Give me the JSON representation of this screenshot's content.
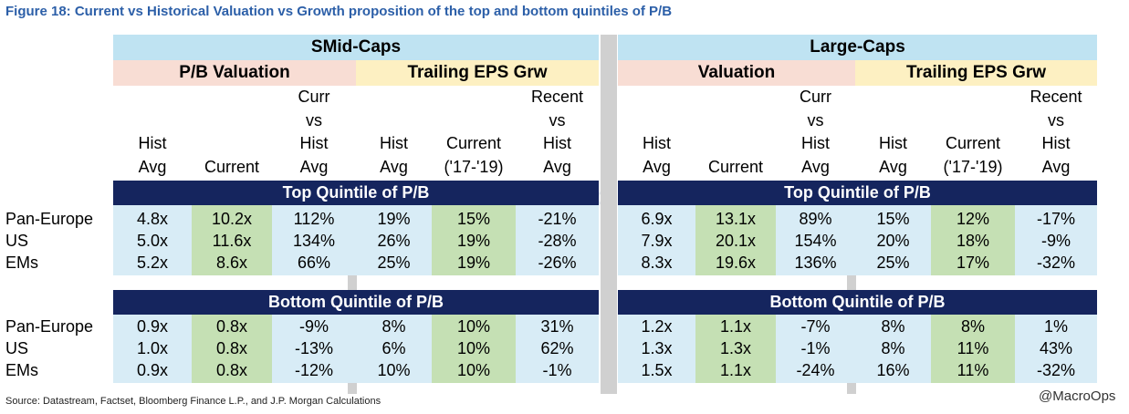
{
  "figure_title": "Figure 18: Current vs Historical Valuation vs Growth proposition of the top and bottom quintiles of P/B",
  "panels": [
    {
      "title": "SMid-Caps",
      "valuation_label": "P/B Valuation",
      "growth_label": "Trailing EPS Grw",
      "columns": [
        [
          "Hist",
          "Avg"
        ],
        [
          "Current"
        ],
        [
          "Curr",
          "vs",
          "Hist",
          "Avg"
        ],
        [
          "Hist",
          "Avg"
        ],
        [
          "Current",
          "('17-'19)"
        ],
        [
          "Recent",
          "vs",
          "Hist",
          "Avg"
        ]
      ]
    },
    {
      "title": "Large-Caps",
      "valuation_label": "Valuation",
      "growth_label": "Trailing EPS Grw",
      "columns": [
        [
          "Hist",
          "Avg"
        ],
        [
          "Current"
        ],
        [
          "Curr",
          "vs",
          "Hist",
          "Avg"
        ],
        [
          "Hist",
          "Avg"
        ],
        [
          "Current",
          "('17-'19)"
        ],
        [
          "Recent",
          "vs",
          "Hist",
          "Avg"
        ]
      ]
    }
  ],
  "sections": [
    {
      "title": "Top Quintile of P/B",
      "rows": [
        {
          "label": "Pan-Europe",
          "smid": [
            "4.8x",
            "10.2x",
            "112%",
            "19%",
            "15%",
            "-21%"
          ],
          "large": [
            "6.9x",
            "13.1x",
            "89%",
            "15%",
            "12%",
            "-17%"
          ]
        },
        {
          "label": "US",
          "smid": [
            "5.0x",
            "11.6x",
            "134%",
            "26%",
            "19%",
            "-28%"
          ],
          "large": [
            "7.9x",
            "20.1x",
            "154%",
            "20%",
            "18%",
            "-9%"
          ]
        },
        {
          "label": "EMs",
          "smid": [
            "5.2x",
            "8.6x",
            "66%",
            "25%",
            "19%",
            "-26%"
          ],
          "large": [
            "8.3x",
            "19.6x",
            "136%",
            "25%",
            "17%",
            "-32%"
          ]
        }
      ]
    },
    {
      "title": "Bottom Quintile of P/B",
      "rows": [
        {
          "label": "Pan-Europe",
          "smid": [
            "0.9x",
            "0.8x",
            "-9%",
            "8%",
            "10%",
            "31%"
          ],
          "large": [
            "1.2x",
            "1.1x",
            "-7%",
            "8%",
            "8%",
            "1%"
          ]
        },
        {
          "label": "US",
          "smid": [
            "1.0x",
            "0.8x",
            "-13%",
            "6%",
            "10%",
            "62%"
          ],
          "large": [
            "1.3x",
            "1.3x",
            "-1%",
            "8%",
            "11%",
            "43%"
          ]
        },
        {
          "label": "EMs",
          "smid": [
            "0.9x",
            "0.8x",
            "-12%",
            "10%",
            "10%",
            "-1%"
          ],
          "large": [
            "1.5x",
            "1.1x",
            "-24%",
            "16%",
            "11%",
            "-32%"
          ]
        }
      ]
    }
  ],
  "source_note": "Source: Datastream, Factset, Bloomberg Finance L.P., and J.P. Morgan Calculations",
  "handle": "@MacroOps",
  "watermark": "@MacroOps",
  "colors": {
    "title_blue": "#2c5fa8",
    "panel_header": "#bfe3f2",
    "valuation_header": "#f8ddd4",
    "growth_header": "#fdf0c2",
    "section_bar": "#15255e",
    "current_highlight": "#c5e0b4"
  }
}
